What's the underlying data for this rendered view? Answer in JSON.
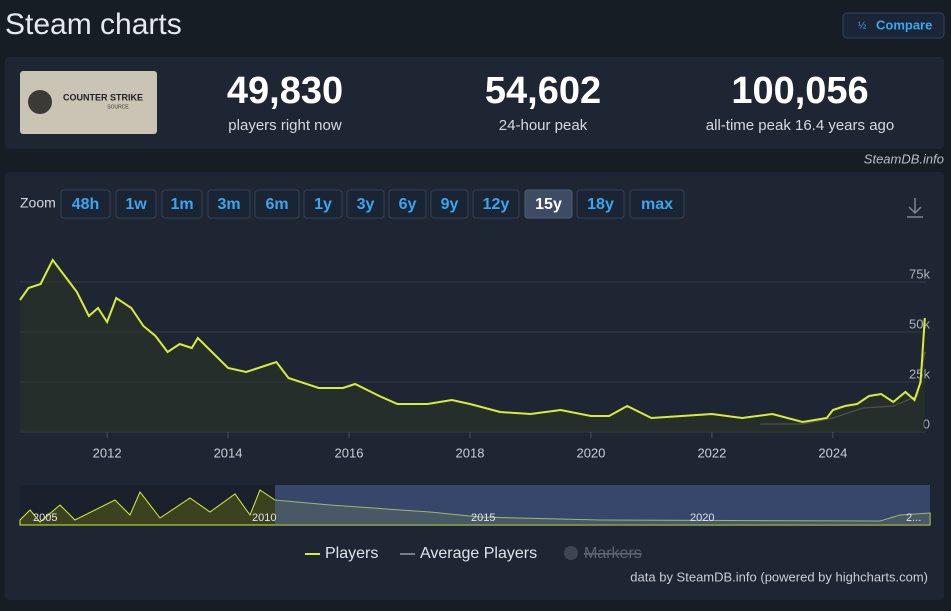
{
  "header": {
    "title": "Steam charts",
    "compare": "Compare"
  },
  "game": {
    "logo_title": "COUNTER STRIKE",
    "logo_subtitle": "SOURCE"
  },
  "stats": [
    {
      "value": "49,830",
      "label": "players right now"
    },
    {
      "value": "54,602",
      "label": "24-hour peak"
    },
    {
      "value": "100,056",
      "label": "all-time peak 16.4 years ago"
    }
  ],
  "source": "SteamDB.info",
  "zoom": {
    "label": "Zoom",
    "options": [
      "48h",
      "1w",
      "1m",
      "3m",
      "6m",
      "1y",
      "3y",
      "6y",
      "9y",
      "12y",
      "15y",
      "18y",
      "max"
    ],
    "active": "15y"
  },
  "chart_data": {
    "type": "line",
    "xlim": [
      2010.56,
      2025.54
    ],
    "xticks": [
      2012,
      2014,
      2016,
      2018,
      2020,
      2022,
      2024
    ],
    "ylim": [
      0,
      100000
    ],
    "yticks": [
      0,
      {
        "value": 25000,
        "label": "25k"
      },
      {
        "value": 50000,
        "label": "50k"
      },
      {
        "value": 75000,
        "label": "75k"
      }
    ],
    "grid": true,
    "series": [
      {
        "name": "Players",
        "color": "#d4ee3a",
        "x": [
          2010.56,
          2010.7,
          2010.9,
          2011.0,
          2011.1,
          2011.3,
          2011.5,
          2011.7,
          2011.85,
          2012.0,
          2012.15,
          2012.4,
          2012.6,
          2012.8,
          2013.0,
          2013.2,
          2013.4,
          2013.5,
          2013.8,
          2014.0,
          2014.3,
          2014.6,
          2014.8,
          2015.0,
          2015.5,
          2015.9,
          2016.1,
          2016.5,
          2016.8,
          2017.3,
          2017.7,
          2018.0,
          2018.5,
          2019.0,
          2019.5,
          2020.0,
          2020.3,
          2020.6,
          2021.0,
          2021.5,
          2022.0,
          2022.5,
          2023.0,
          2023.5,
          2023.9,
          2024.0,
          2024.2,
          2024.4,
          2024.6,
          2024.8,
          2025.0,
          2025.2,
          2025.35,
          2025.45,
          2025.52
        ],
        "values": [
          66000,
          72000,
          74000,
          80000,
          86000,
          78000,
          70000,
          58000,
          62000,
          55000,
          67000,
          62000,
          53000,
          48000,
          40000,
          44000,
          42000,
          47000,
          38000,
          32000,
          30000,
          33000,
          35000,
          27000,
          22000,
          22000,
          24000,
          18000,
          14000,
          14000,
          16000,
          14000,
          10000,
          9000,
          11000,
          8000,
          8000,
          13000,
          7000,
          8000,
          9000,
          7000,
          9000,
          5000,
          7000,
          11000,
          13000,
          14000,
          18000,
          19000,
          15000,
          20000,
          16000,
          25000,
          57000
        ]
      },
      {
        "name": "Average Players",
        "color": "#7a7f87",
        "x": [
          2022.8,
          2023.5,
          2024.0,
          2024.5,
          2025.0,
          2025.4,
          2025.52
        ],
        "values": [
          4000,
          4000,
          7000,
          12000,
          13000,
          18000,
          40000
        ]
      }
    ],
    "markers_label": "Markers",
    "navigator_labels": [
      "2005",
      "2010",
      "2015",
      "2020",
      "2..."
    ]
  },
  "credit": "data by SteamDB.info (powered by highcharts.com)"
}
